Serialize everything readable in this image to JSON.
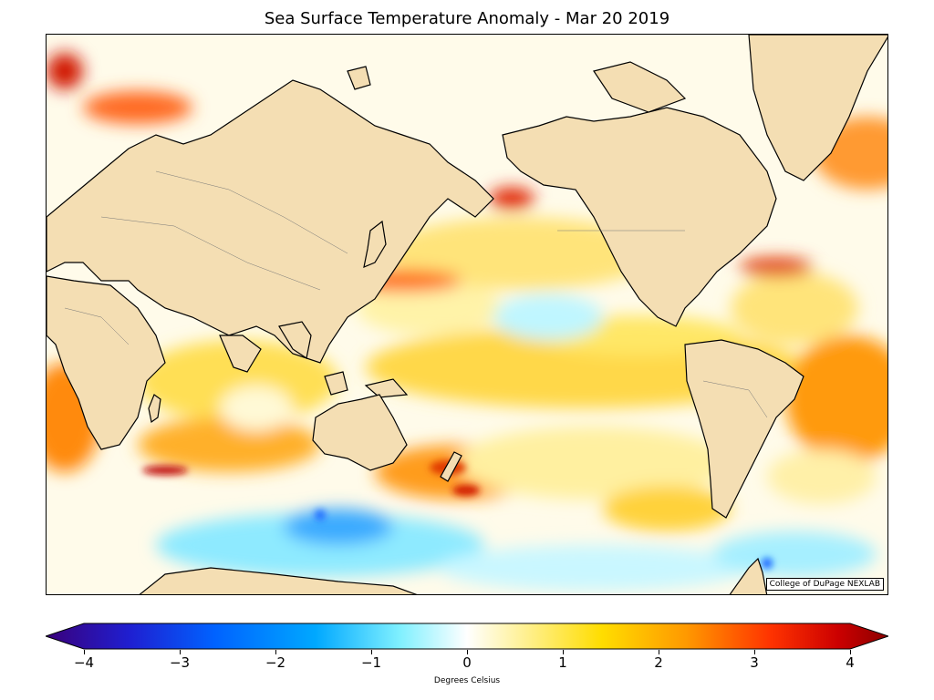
{
  "title": "Sea Surface Temperature Anomaly - Mar 20 2019",
  "credit": "College of DuPage NEXLAB",
  "colorbar": {
    "label": "Degrees Celsius",
    "min": -4,
    "max": 4,
    "ticks": [
      "−4",
      "−3",
      "−2",
      "−1",
      "0",
      "1",
      "2",
      "3",
      "4"
    ],
    "stops": [
      "#3a007a",
      "#1f1fd1",
      "#0062ff",
      "#00a8ff",
      "#7ff0ff",
      "#ffffff",
      "#ffee80",
      "#ffdd00",
      "#ff9900",
      "#ff3300",
      "#cc0000",
      "#8b0000"
    ]
  },
  "colors": {
    "land": "#f4deb3",
    "coastline": "#000000",
    "warm": "#ff9900",
    "cool": "#00c8ff"
  }
}
